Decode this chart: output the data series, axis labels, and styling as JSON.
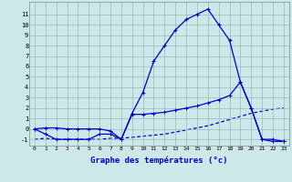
{
  "hours": [
    0,
    1,
    2,
    3,
    4,
    5,
    6,
    7,
    8,
    9,
    10,
    11,
    12,
    13,
    14,
    15,
    16,
    17,
    18,
    19,
    20,
    21,
    22,
    23
  ],
  "temp": [
    0,
    -0.5,
    -1,
    -1,
    -1,
    -1,
    -0.5,
    -0.5,
    -1,
    1.5,
    3.5,
    6.5,
    8,
    9.5,
    10.5,
    11,
    11.5,
    10,
    8.5,
    4.5,
    2,
    -1,
    -1,
    -1.2
  ],
  "line2": [
    0,
    0.1,
    0.1,
    0.0,
    0.0,
    0.0,
    0.0,
    -0.2,
    -1,
    1.4,
    1.4,
    1.5,
    1.6,
    1.8,
    2.0,
    2.2,
    2.5,
    2.8,
    3.2,
    4.5,
    2.0,
    -1,
    -1.2,
    -1.2
  ],
  "line3": [
    -1,
    -0.9,
    -1,
    -1,
    -1,
    -1,
    -1,
    -0.9,
    -0.9,
    -0.8,
    -0.7,
    -0.6,
    -0.5,
    -0.3,
    -0.1,
    0.1,
    0.3,
    0.6,
    0.9,
    1.2,
    1.5,
    1.7,
    1.9,
    2.0
  ],
  "bg_color": "#cce8e8",
  "line_color": "#0000cc",
  "grid_color": "#99bbbb",
  "xlabel": "Graphe des températures (°c)",
  "yticks": [
    11,
    10,
    9,
    8,
    7,
    6,
    5,
    4,
    3,
    2,
    1,
    0,
    -1
  ],
  "xticks": [
    0,
    1,
    2,
    3,
    4,
    5,
    6,
    7,
    8,
    9,
    10,
    11,
    12,
    13,
    14,
    15,
    16,
    17,
    18,
    19,
    20,
    21,
    22,
    23
  ],
  "xlim": [
    -0.5,
    23.5
  ],
  "ylim": [
    -1.6,
    12.2
  ]
}
